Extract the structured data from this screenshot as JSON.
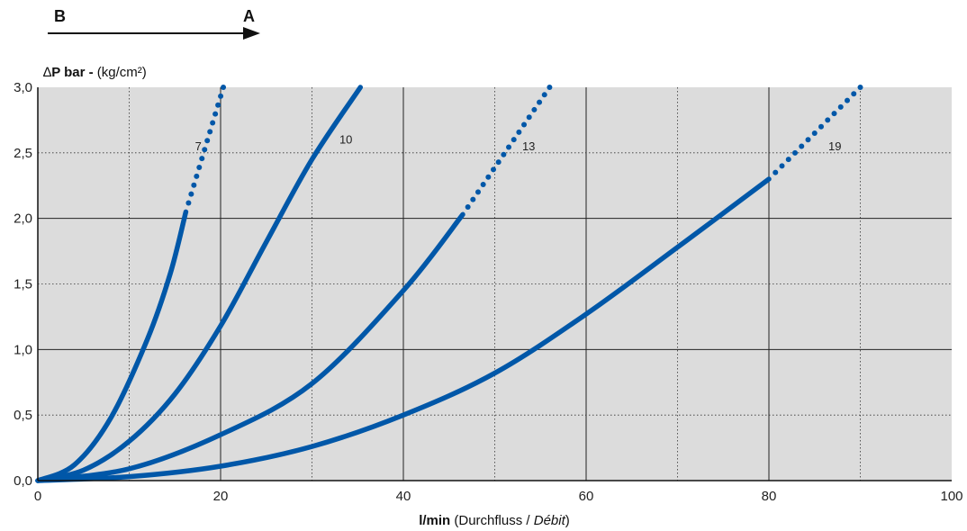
{
  "direction": {
    "from": "B",
    "to": "A"
  },
  "chart_data": {
    "type": "line",
    "ylabel": {
      "symbol": "∆",
      "bold": "P bar -",
      "normal": " (kg/cm²)"
    },
    "xlabel": {
      "bold": "l/min",
      "normal": " (Durchfluss / ",
      "italic": "Débit",
      "close": ")"
    },
    "xlim": [
      0,
      100
    ],
    "ylim": [
      0,
      3.0
    ],
    "xticks": [
      0,
      20,
      40,
      60,
      80,
      100
    ],
    "xtick_labels": [
      "0",
      "20",
      "40",
      "60",
      "80",
      "100"
    ],
    "yticks": [
      0,
      0.5,
      1.0,
      1.5,
      2.0,
      2.5,
      3.0
    ],
    "ytick_labels": [
      "0,0",
      "0,5",
      "1,0",
      "1,5",
      "2,0",
      "2,5",
      "3,0"
    ],
    "major_grid_x": [
      20,
      40,
      60,
      80
    ],
    "minor_grid_x": [
      10,
      30,
      50,
      70,
      90
    ],
    "major_grid_y": [
      1.0,
      2.0
    ],
    "minor_grid_y": [
      0.5,
      1.5,
      2.5
    ],
    "plot_background": "#dcdcdc",
    "series_color": "#0057a8",
    "series": [
      {
        "name": "7",
        "solid_x": [
          0,
          4,
          8,
          12,
          14.5,
          16.2
        ],
        "solid_y": [
          0,
          0.12,
          0.48,
          1.08,
          1.58,
          2.05
        ],
        "dotted_x": [
          16.2,
          20.3
        ],
        "dotted_y": [
          2.05,
          3.0
        ],
        "label_at": [
          17.2,
          2.52
        ]
      },
      {
        "name": "10",
        "solid_x": [
          0,
          5,
          10,
          15,
          20,
          25,
          30,
          35.3
        ],
        "solid_y": [
          0,
          0.08,
          0.3,
          0.66,
          1.18,
          1.82,
          2.45,
          3.0
        ],
        "dotted_x": [],
        "dotted_y": [],
        "label_at": [
          33,
          2.57
        ]
      },
      {
        "name": "13",
        "solid_x": [
          0,
          10,
          20,
          30,
          40,
          46.5
        ],
        "solid_y": [
          0,
          0.09,
          0.35,
          0.74,
          1.45,
          2.03
        ],
        "dotted_x": [
          46.5,
          56
        ],
        "dotted_y": [
          2.03,
          3.0
        ],
        "label_at": [
          53,
          2.52
        ]
      },
      {
        "name": "19",
        "solid_x": [
          0,
          10,
          20,
          30,
          40,
          50,
          60,
          70,
          80
        ],
        "solid_y": [
          0,
          0.03,
          0.11,
          0.26,
          0.5,
          0.82,
          1.27,
          1.78,
          2.3
        ],
        "dotted_x": [
          80,
          90
        ],
        "dotted_y": [
          2.3,
          3.0
        ],
        "label_at": [
          86.5,
          2.52
        ]
      }
    ]
  }
}
